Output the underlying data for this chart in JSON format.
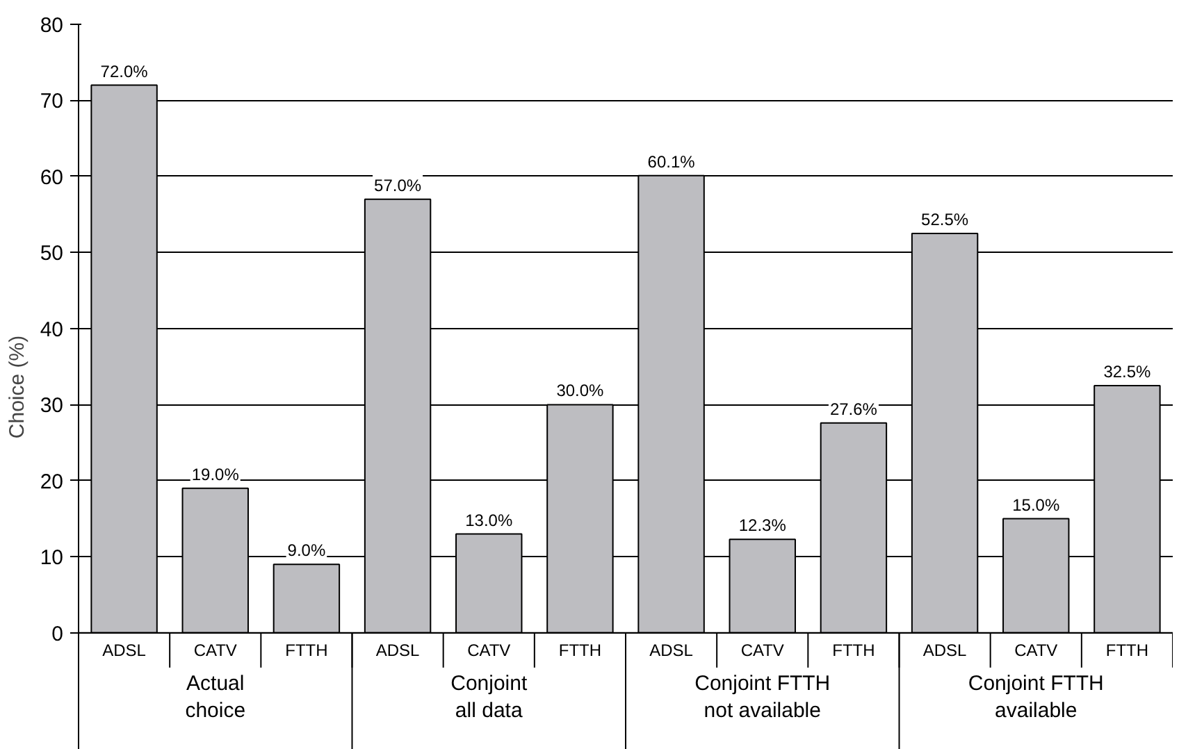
{
  "chart_data": {
    "type": "bar",
    "ylabel": "Choice (%)",
    "categories": [
      "ADSL",
      "CATV",
      "FTTH",
      "ADSL",
      "CATV",
      "FTTH",
      "ADSL",
      "CATV",
      "FTTH",
      "ADSL",
      "CATV",
      "FTTH"
    ],
    "values": [
      72.0,
      19.0,
      9.0,
      57.0,
      13.0,
      30.0,
      60.1,
      12.3,
      27.6,
      52.5,
      15.0,
      32.5
    ],
    "value_labels": [
      "72.0%",
      "19.0%",
      "9.0%",
      "57.0%",
      "13.0%",
      "30.0%",
      "60.1%",
      "12.3%",
      "27.6%",
      "52.5%",
      "15.0%",
      "32.5%"
    ],
    "color": "#bdbdc1",
    "annotations": [
      "Actual\nchoice",
      "Conjoint\nall data",
      "Conjoint FTTH\nnot available",
      "Conjoint FTTH\navailable"
    ],
    "ylim": [
      0,
      80
    ],
    "yticks": [
      0,
      10,
      20,
      30,
      40,
      50,
      60,
      70,
      80
    ],
    "grid": "y"
  }
}
